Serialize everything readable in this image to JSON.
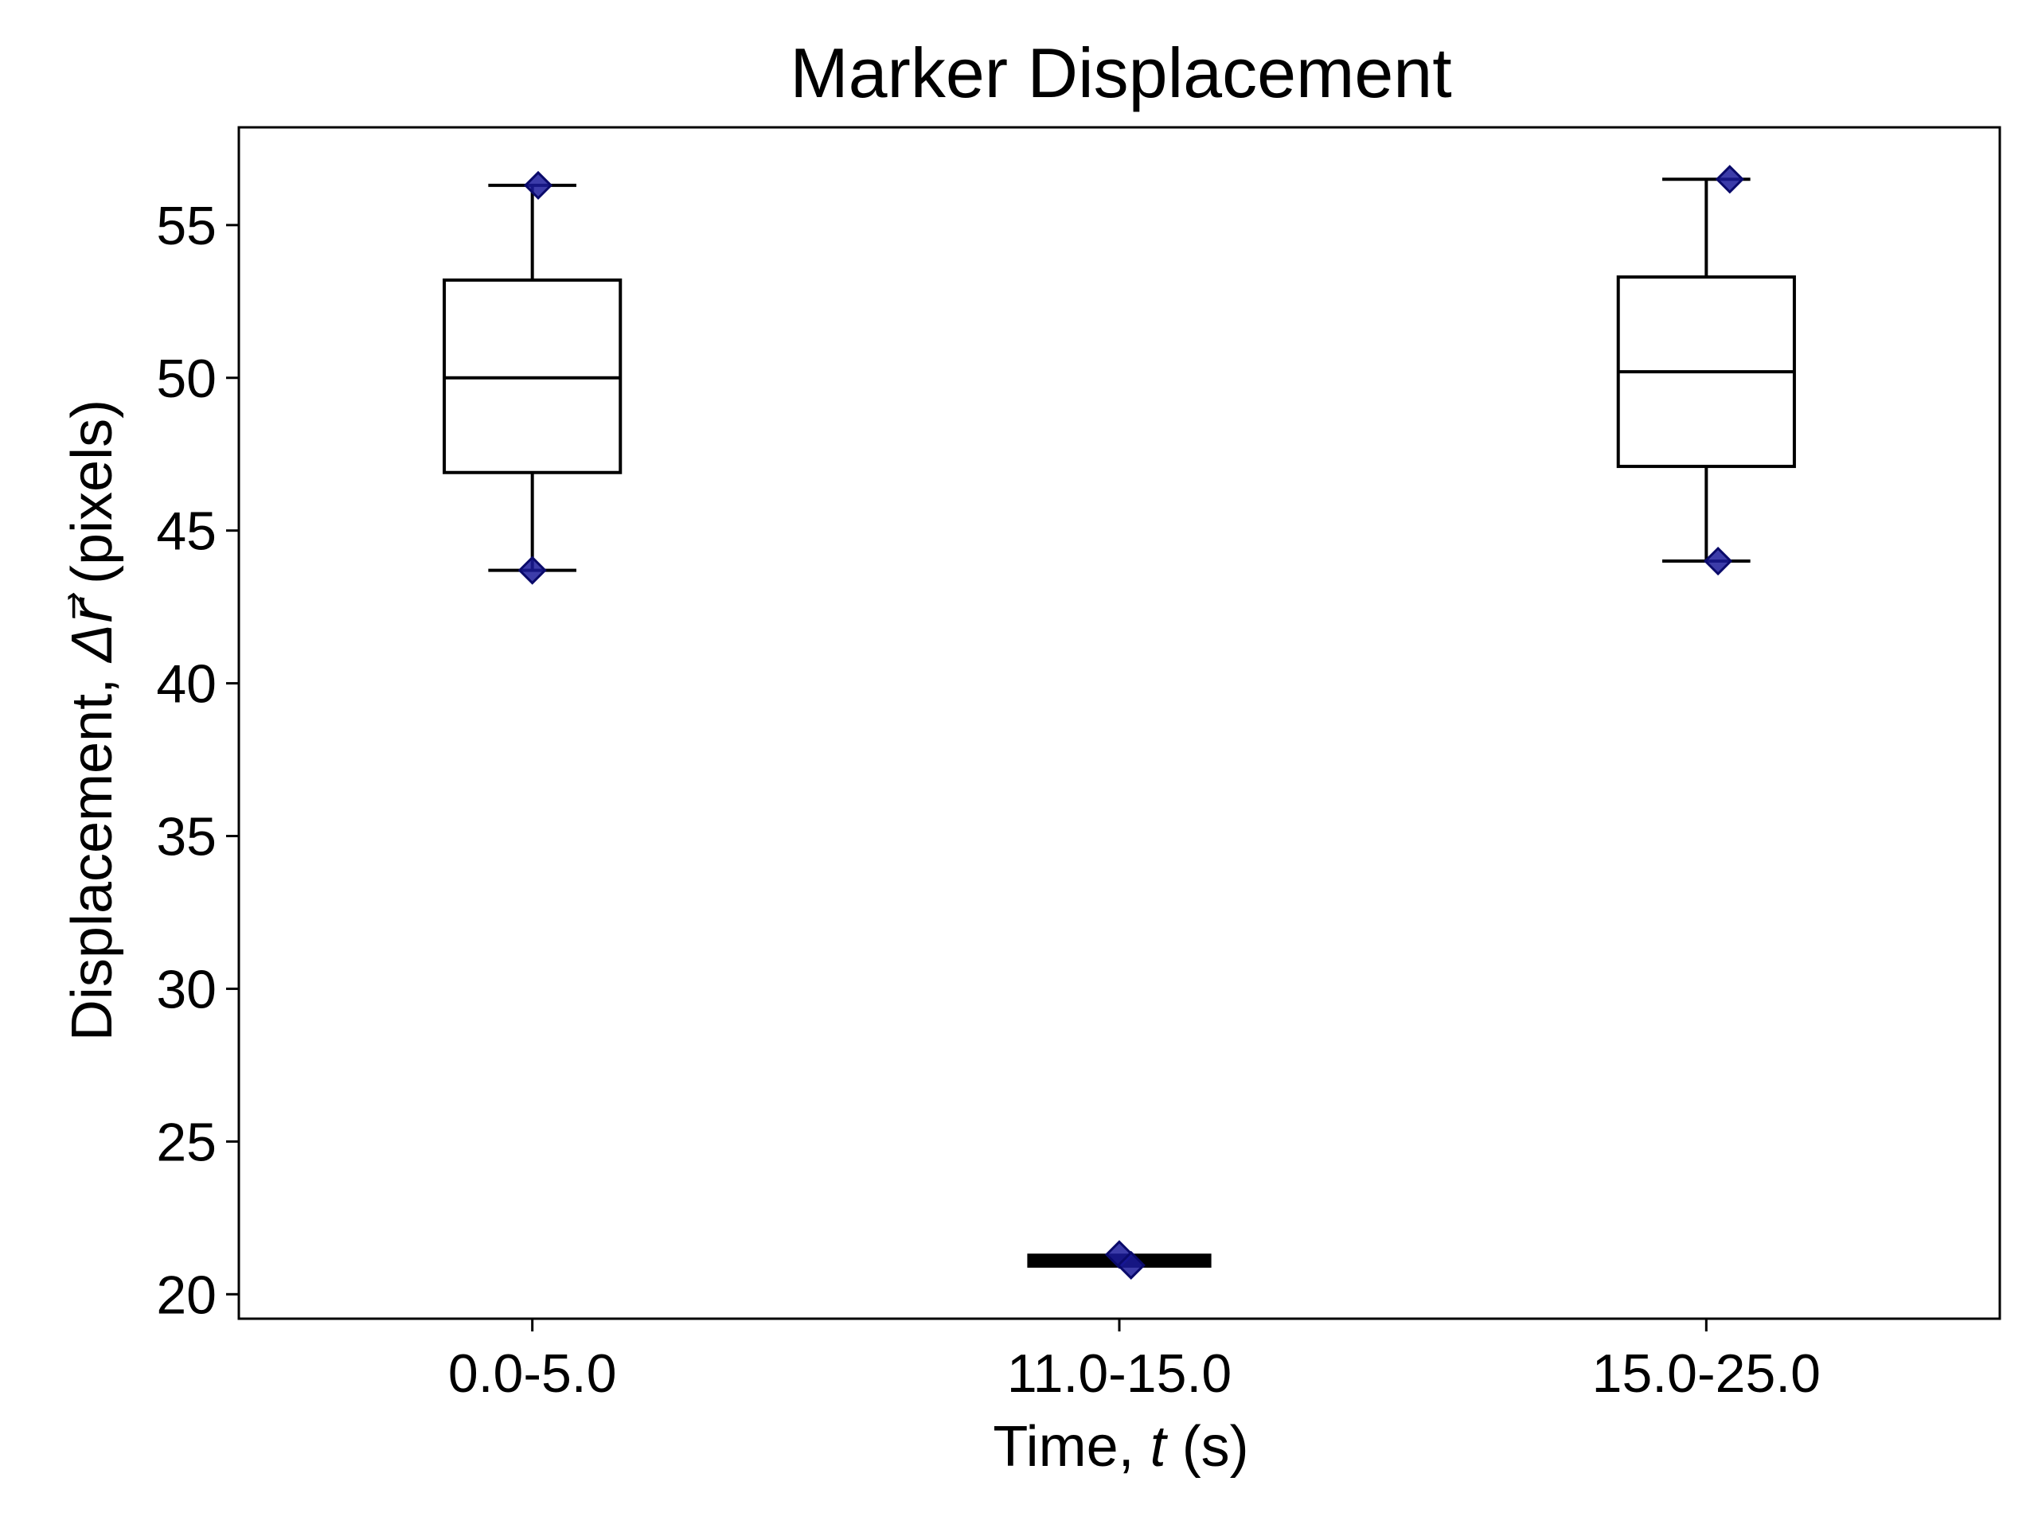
{
  "chart_data": {
    "type": "box",
    "title": "Marker Displacement",
    "xlabel": {
      "prefix": "Time, ",
      "var": "t",
      "suffix": " (s)"
    },
    "ylabel": {
      "prefix": "Displacement, ",
      "var": "Δr⃗",
      "suffix": " (pixels)"
    },
    "categories": [
      "0.0-5.0",
      "11.0-15.0",
      "15.0-25.0"
    ],
    "ylim": [
      19.2,
      58.2
    ],
    "yticks": [
      20,
      25,
      30,
      35,
      40,
      45,
      50,
      55
    ],
    "grid": false,
    "boxes": [
      {
        "whisker_low": 43.7,
        "q1": 46.9,
        "median": 50.0,
        "q3": 53.2,
        "whisker_high": 56.3
      },
      {
        "whisker_low": 21.0,
        "q1": 21.0,
        "median": 21.1,
        "q3": 21.2,
        "whisker_high": 21.2
      },
      {
        "whisker_low": 44.0,
        "q1": 47.1,
        "median": 50.2,
        "q3": 53.3,
        "whisker_high": 56.5
      }
    ],
    "points": [
      {
        "category": "0.0-5.0",
        "offset": 0.01,
        "y": 56.3
      },
      {
        "category": "0.0-5.0",
        "offset": 0.0,
        "y": 43.7
      },
      {
        "category": "11.0-15.0",
        "offset": 0.0,
        "y": 21.3
      },
      {
        "category": "11.0-15.0",
        "offset": 0.02,
        "y": 20.95
      },
      {
        "category": "15.0-25.0",
        "offset": 0.04,
        "y": 56.5
      },
      {
        "category": "15.0-25.0",
        "offset": 0.02,
        "y": 44.0
      }
    ],
    "colors": {
      "box": "#000000",
      "points": "#1a1a9a"
    }
  }
}
